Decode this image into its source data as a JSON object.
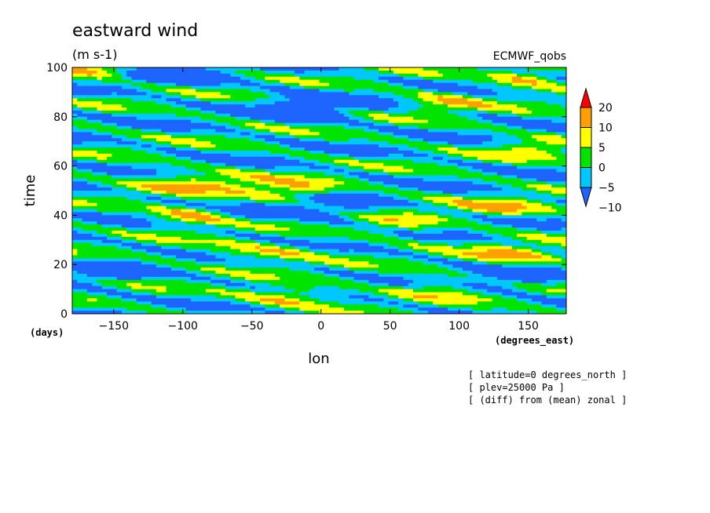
{
  "chart_data": {
    "type": "heatmap",
    "title": "eastward wind",
    "subtitle": "(m s-1)",
    "source_label": "ECMWF_qobs",
    "xlabel": "lon",
    "ylabel": "time",
    "x_units": "(degrees_east)",
    "y_units": "(days)",
    "xlim": [
      -180,
      177.5
    ],
    "ylim": [
      0,
      100
    ],
    "x_ticks": [
      -150,
      -100,
      -50,
      0,
      50,
      100,
      150
    ],
    "y_ticks": [
      0,
      20,
      40,
      60,
      80,
      100
    ],
    "notes": [
      "[ latitude=0 degrees_north ]",
      "[ plev=25000 Pa ]",
      "[ (diff) from (mean) zonal ]"
    ],
    "colorbar": {
      "levels": [
        -10,
        -5,
        0,
        5,
        10,
        20
      ],
      "level_labels": [
        "20",
        "10",
        "5",
        "0",
        "-5",
        "-10"
      ],
      "colors": [
        "#1e64ff",
        "#00c8ff",
        "#00e400",
        "#ffff00",
        "#ffa000",
        "#ff0000"
      ],
      "extend": "both"
    },
    "features": [
      {
        "lon": -160,
        "time": 99,
        "value": 14,
        "sigma_lon": 22,
        "sigma_time": 2.5
      },
      {
        "lon": 150,
        "time": 96,
        "value": 12,
        "sigma_lon": 18,
        "sigma_time": 3
      },
      {
        "lon": 90,
        "time": 86,
        "value": 9,
        "sigma_lon": 20,
        "sigma_time": 3
      },
      {
        "lon": -110,
        "time": 97,
        "value": -9,
        "sigma_lon": 30,
        "sigma_time": 3
      },
      {
        "lon": -5,
        "time": 84,
        "value": -11,
        "sigma_lon": 25,
        "sigma_time": 4
      },
      {
        "lon": 155,
        "time": 67,
        "value": 8,
        "sigma_lon": 20,
        "sigma_time": 3
      },
      {
        "lon": -90,
        "time": 53,
        "value": 10,
        "sigma_lon": 30,
        "sigma_time": 3
      },
      {
        "lon": -25,
        "time": 50,
        "value": 11,
        "sigma_lon": 25,
        "sigma_time": 3
      },
      {
        "lon": -95,
        "time": 40,
        "value": 12,
        "sigma_lon": 18,
        "sigma_time": 3
      },
      {
        "lon": 55,
        "time": 36,
        "value": 8,
        "sigma_lon": 22,
        "sigma_time": 3
      },
      {
        "lon": 130,
        "time": 43,
        "value": 9,
        "sigma_lon": 25,
        "sigma_time": 3
      },
      {
        "lon": -5,
        "time": 42,
        "value": -9,
        "sigma_lon": 30,
        "sigma_time": 3
      },
      {
        "lon": -40,
        "time": 25,
        "value": 9,
        "sigma_lon": 30,
        "sigma_time": 3
      },
      {
        "lon": 140,
        "time": 24,
        "value": 10,
        "sigma_lon": 25,
        "sigma_time": 3
      },
      {
        "lon": -25,
        "time": 7,
        "value": 11,
        "sigma_lon": 25,
        "sigma_time": 3
      },
      {
        "lon": 85,
        "time": 10,
        "value": 8,
        "sigma_lon": 25,
        "sigma_time": 3
      },
      {
        "lon": -155,
        "time": 17,
        "value": -9,
        "sigma_lon": 20,
        "sigma_time": 3
      },
      {
        "lon": 135,
        "time": 14,
        "value": -9,
        "sigma_lon": 25,
        "sigma_time": 3
      }
    ]
  }
}
